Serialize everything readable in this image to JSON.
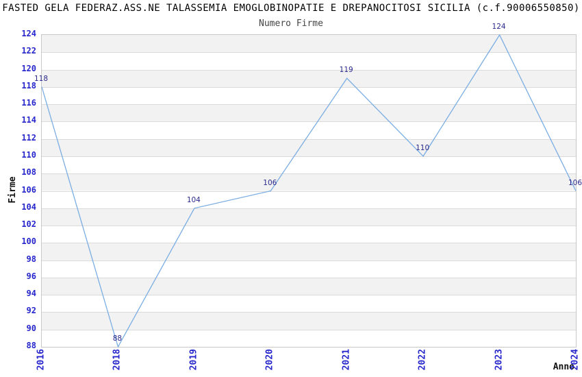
{
  "header": {
    "title": "FASTED GELA FEDERAZ.ASS.NE TALASSEMIA EMOGLOBINOPATIE E DREPANOCITOSI SICILIA (c.f.90006550850)",
    "subtitle": "Numero Firme"
  },
  "chart_data": {
    "type": "line",
    "title": "Numero Firme",
    "xlabel": "Anno",
    "ylabel": "Firme",
    "categories": [
      "2016",
      "2018",
      "2019",
      "2020",
      "2021",
      "2022",
      "2023",
      "2024"
    ],
    "values": [
      118,
      88,
      104,
      106,
      119,
      110,
      124,
      106
    ],
    "ylim": [
      88,
      124
    ],
    "ytick_step": 2,
    "yticks": [
      88,
      90,
      92,
      94,
      96,
      98,
      100,
      102,
      104,
      106,
      108,
      110,
      112,
      114,
      116,
      118,
      120,
      122,
      124
    ],
    "grid": "horizontal-bands",
    "legend": "none",
    "colors": {
      "line": "#7aade3",
      "tick_labels": "#2626cc",
      "value_labels": "#28288c",
      "band_fill": "#f2f2f2",
      "gridline": "#dadada",
      "plot_border": "#c8c8c8",
      "title_text": "#000000",
      "subtitle_text": "#444444"
    }
  }
}
